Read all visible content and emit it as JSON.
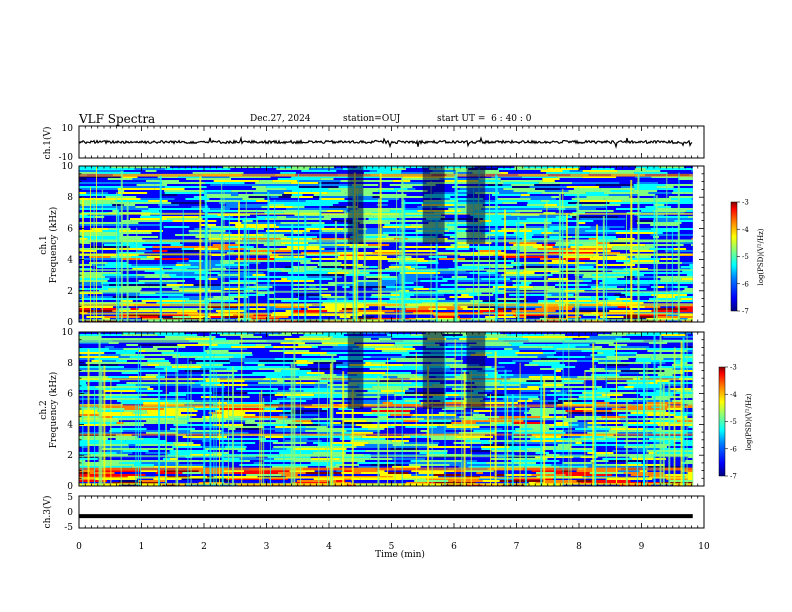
{
  "header": {
    "title": "VLF Spectra",
    "date": "Dec.27, 2024",
    "station": "station=OUJ",
    "start": "start UT =  6 : 40 : 0"
  },
  "chart_data": {
    "type": "heatmap",
    "x": {
      "label": "Time (min)",
      "range": [
        0,
        10
      ],
      "ticks": [
        "0",
        "1",
        "2",
        "3",
        "4",
        "5",
        "6",
        "7",
        "8",
        "9",
        "10"
      ]
    },
    "panels": [
      {
        "id": "ch1-waveform",
        "type": "line",
        "ylabel": "ch.1(V)",
        "ylim": [
          -10,
          10
        ],
        "yticks": [
          "10",
          "-10"
        ],
        "description_level": 0
      },
      {
        "id": "ch1-spectrogram",
        "type": "heatmap",
        "ylabel": "ch.1\nFrequency (kHz)",
        "ylim": [
          0,
          10
        ],
        "yticks": [
          "0",
          "2",
          "4",
          "6",
          "8",
          "10"
        ],
        "colorbar": {
          "label": "log(PSD)(V²/Hz)",
          "range": [
            -7,
            -3
          ],
          "ticks": [
            "-3",
            "-4",
            "-5",
            "-6",
            "-7"
          ]
        }
      },
      {
        "id": "ch2-spectrogram",
        "type": "heatmap",
        "ylabel": "ch.2\nFrequency (kHz)",
        "ylim": [
          0,
          10
        ],
        "yticks": [
          "0",
          "2",
          "4",
          "6",
          "8",
          "10"
        ],
        "colorbar": {
          "label": "log(PSD)(V²/Hz)",
          "range": [
            -7,
            -3
          ],
          "ticks": [
            "-3",
            "-4",
            "-5",
            "-6",
            "-7"
          ]
        }
      },
      {
        "id": "ch3-waveform",
        "type": "line",
        "ylabel": "ch.3(V)",
        "ylim": [
          -5,
          5
        ],
        "yticks": [
          "5",
          "0",
          "-5"
        ],
        "level": -1.3
      }
    ],
    "data_end_min": 9.82,
    "colormap": [
      "#00007f",
      "#0000ff",
      "#0080ff",
      "#00ffff",
      "#80ff80",
      "#ffff00",
      "#ff8000",
      "#ff0000",
      "#800000"
    ]
  }
}
